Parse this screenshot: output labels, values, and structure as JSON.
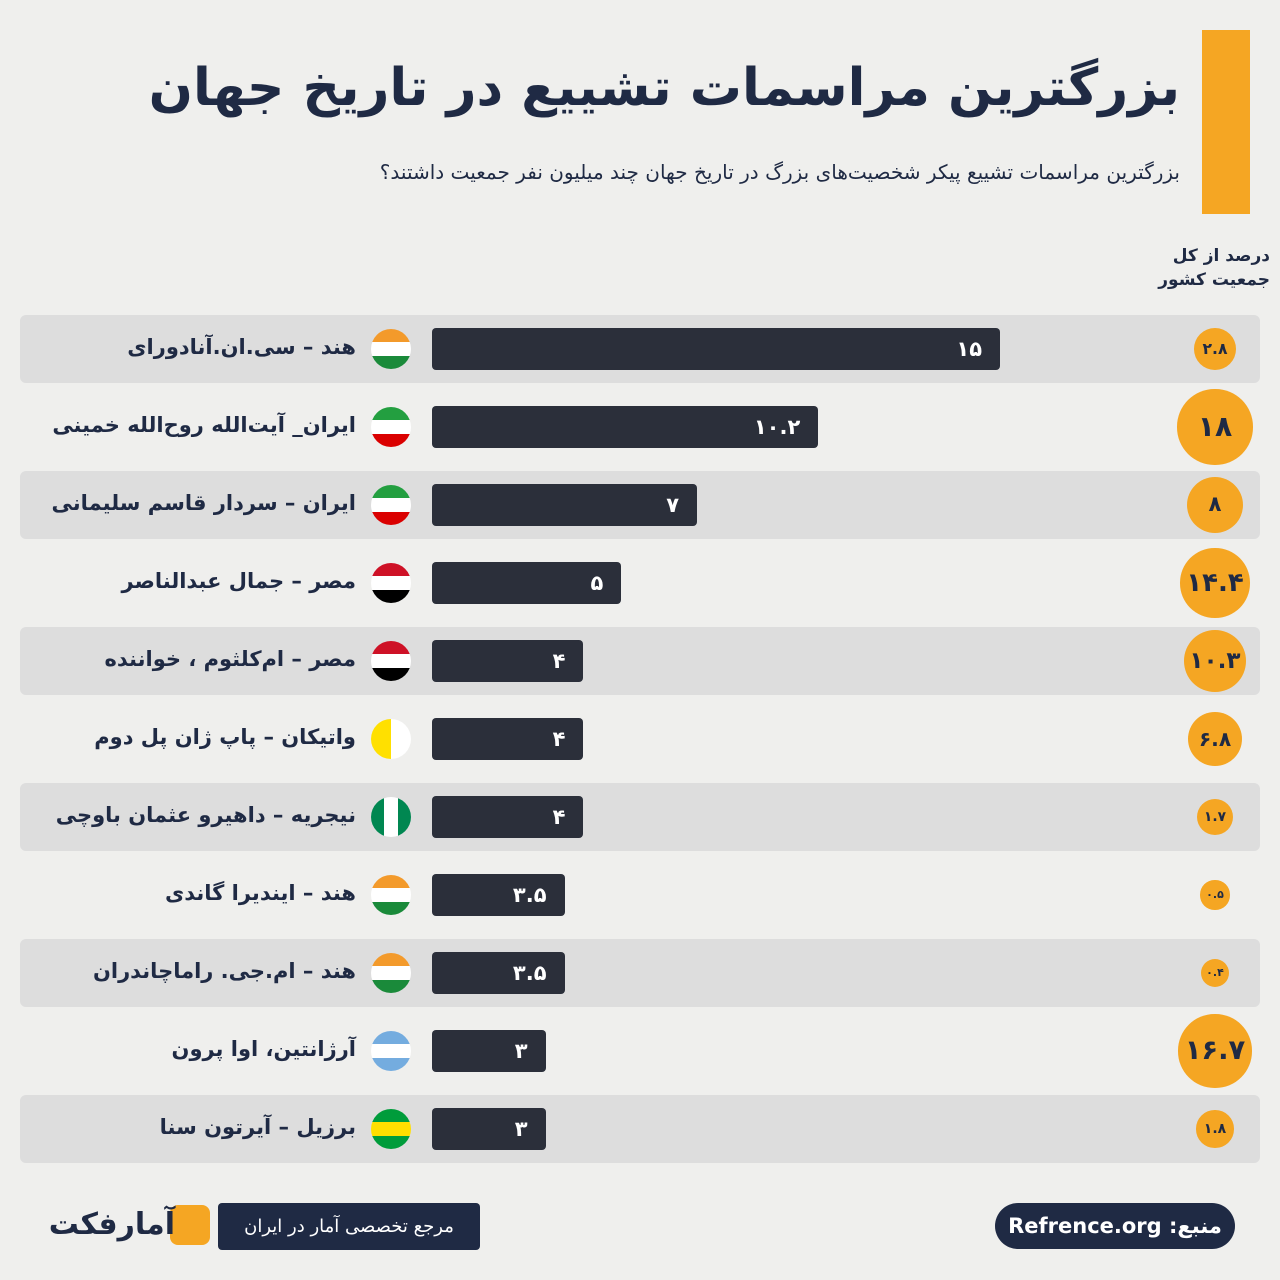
{
  "chart_data": {
    "type": "bar",
    "title": "بزرگترین مراسمات تشییع در تاریخ جهان",
    "subtitle": "بزرگترین مراسمات تشییع  پیکر شخصیت‌های بزرگ در تاریخ جهان چند میلیون نفر جمعیت داشتند؟",
    "categories": [
      "هند – سی.ان.آنادورای",
      "ایران_ آیت‌الله روح‌الله خمینی",
      "ایران – سردار قاسم سلیمانی",
      "مصر – جمال عبدالناصر",
      "مصر – ام‌کلثوم ، خواننده",
      "واتیکان – پاپ ژان پل دوم",
      "نیجریه – داهیرو عثمان باوچی",
      "هند – ایندیرا گاندی",
      "هند – ام.جی. راماچاندران",
      "آرژانتین، اوا پرون",
      "برزیل – آیرتون سنا"
    ],
    "values": [
      15,
      10.2,
      7,
      5,
      4,
      4,
      4,
      3.5,
      3.5,
      3,
      3
    ],
    "value_labels": [
      "۱۵",
      "۱۰.۲",
      "۷",
      "۵",
      "۴",
      "۴",
      "۴",
      "۳.۵",
      "۳.۵",
      "۳",
      "۳"
    ],
    "color": "#2b2f3a",
    "percent": {
      "title": "درصد از کل جمعیت کشور",
      "color": "#f5a623",
      "values": [
        2.8,
        18,
        8,
        14.4,
        10.3,
        6.8,
        1.7,
        0.5,
        0.4,
        16.7,
        1.8
      ],
      "value_labels": [
        "۲.۸",
        "۱۸",
        "۸",
        "۱۴.۴",
        "۱۰.۳",
        "۶.۸",
        "۱.۷",
        "۰.۵",
        "۰.۴",
        "۱۶.۷",
        "۱.۸"
      ]
    },
    "footer_note": "مرجع تخصصی آمار در ایران",
    "source": "منبع: Refrence.org",
    "logo": "آمارفکت"
  }
}
